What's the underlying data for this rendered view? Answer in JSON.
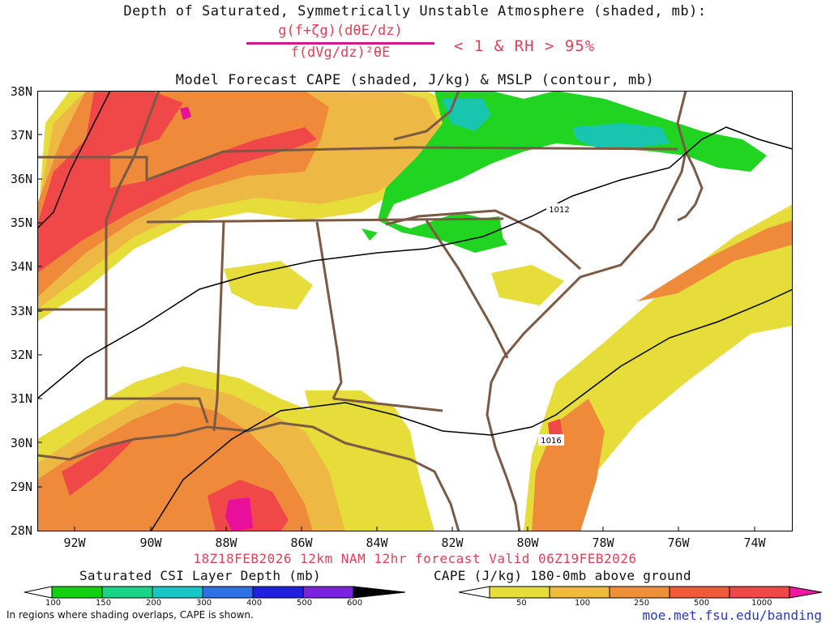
{
  "titles": {
    "line1": "Depth of Saturated, Symmetrically Unstable Atmosphere (shaded, mb):",
    "frac_num": "g(f+ζg)(dθE/dz)",
    "frac_den": "f(dVg/dz)²θE",
    "condition": "< 1 & RH > 95%",
    "line3": "Model Forecast CAPE (shaded, J/kg) & MSLP (contour, mb)"
  },
  "axes": {
    "lat_labels": [
      "38N",
      "37N",
      "36N",
      "35N",
      "34N",
      "33N",
      "32N",
      "31N",
      "30N",
      "29N",
      "28N"
    ],
    "lon_labels": [
      "92W",
      "90W",
      "88W",
      "86W",
      "84W",
      "82W",
      "80W",
      "78W",
      "76W",
      "74W"
    ]
  },
  "isobar_labels": [
    "1012",
    "1016"
  ],
  "run_info": "18Z18FEB2026 12km NAM 12hr forecast Valid 06Z19FEB2026",
  "colorbar_csi": {
    "title": "Saturated CSI Layer Depth (mb)",
    "labels": [
      "100",
      "150",
      "200",
      "300",
      "400",
      "500",
      "600"
    ],
    "colors": [
      "#11d111",
      "#18d486",
      "#18c6c6",
      "#2f6fe8",
      "#2020e0",
      "#7a22e0",
      "#000000"
    ]
  },
  "colorbar_cape": {
    "title": "CAPE (J/kg) 180-0mb above ground",
    "labels": [
      "50",
      "100",
      "250",
      "500",
      "1000"
    ],
    "colors": [
      "#e6dc3a",
      "#eebc3a",
      "#ee8f3a",
      "#f05a3a",
      "#f04848",
      "#f018a0"
    ]
  },
  "footer_note": "In regions where shading overlaps, CAPE is shown.",
  "footer_url": "moe.met.fsu.edu/banding",
  "map_colors": {
    "cape_yellow": "#e6dc3a",
    "cape_lightorange": "#eeb845",
    "cape_orange": "#ee8a3a",
    "cape_red": "#f04848",
    "cape_magenta": "#e8109a",
    "csi_green": "#22d422",
    "csi_teal": "#18c6b0",
    "state_border": "#7a5a44",
    "isobar": "#000000"
  }
}
